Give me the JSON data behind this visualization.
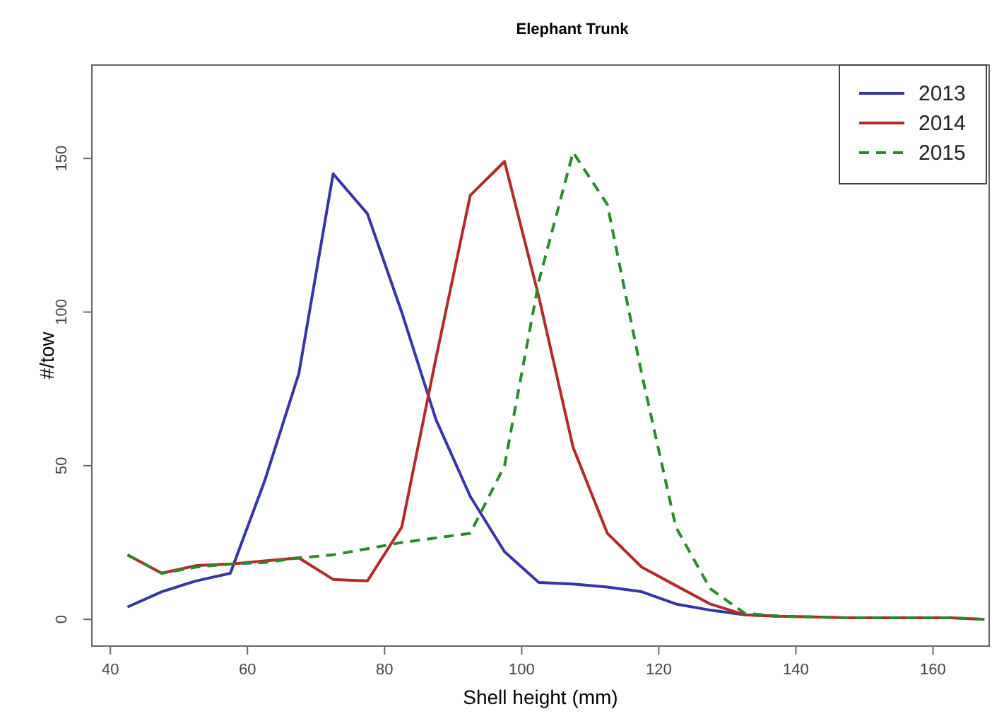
{
  "chart_data": {
    "type": "line",
    "title": "Elephant Trunk",
    "xlabel": "Shell height (mm)",
    "ylabel": "#/tow",
    "x": [
      42.5,
      47.5,
      52.5,
      57.5,
      62.5,
      67.5,
      72.5,
      77.5,
      82.5,
      87.5,
      92.5,
      97.5,
      102.5,
      107.5,
      112.5,
      117.5,
      122.5,
      127.5,
      132.5,
      137.5,
      142.5,
      147.5,
      152.5,
      157.5,
      162.5,
      167.5
    ],
    "series": [
      {
        "name": "2013",
        "color": "#3535a8",
        "line_style": "solid",
        "values": [
          4,
          9,
          12.5,
          15,
          45,
          80,
          145,
          132,
          100,
          65,
          40,
          22,
          12,
          11.5,
          10.5,
          9,
          5,
          3,
          1.5,
          1,
          null,
          null,
          null,
          null,
          null,
          null
        ]
      },
      {
        "name": "2014",
        "color": "#b22a2a",
        "line_style": "solid",
        "values": [
          21,
          15,
          17.5,
          18,
          19,
          20,
          13,
          12.5,
          30,
          85,
          138,
          149,
          105,
          56,
          28,
          17,
          11,
          5,
          1.5,
          1,
          0.8,
          0.5,
          0.5,
          0.5,
          0.5,
          0
        ]
      },
      {
        "name": "2015",
        "color": "#2a8a2a",
        "line_style": "dashed",
        "values": [
          21,
          15,
          17,
          18,
          18.5,
          20,
          21,
          23,
          25,
          26.5,
          28,
          50,
          110,
          152,
          135,
          80,
          30,
          10,
          2,
          1,
          0.8,
          0.5,
          0.5,
          0.5,
          0.5,
          0
        ]
      }
    ],
    "xlim": [
      37.3,
      168.2
    ],
    "ylim": [
      -8.7,
      180.4
    ],
    "xticks": [
      40,
      60,
      80,
      100,
      120,
      140,
      160
    ],
    "yticks": [
      0,
      50,
      100,
      150
    ],
    "legend": "top right",
    "grid": false,
    "marker": "none"
  }
}
